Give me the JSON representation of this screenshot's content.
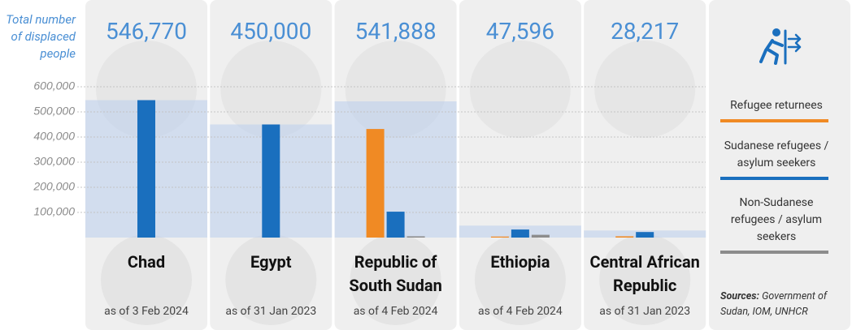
{
  "chart_data": {
    "type": "bar",
    "title": "Total number of displaced people",
    "categories": [
      "Chad",
      "Egypt",
      "Republic of South Sudan",
      "Ethiopia",
      "Central African Republic"
    ],
    "dates": [
      "as of 3 Feb 2024",
      "as of 31 Jan 2023",
      "as of 4 Feb 2024",
      "as of 4 Feb 2024",
      "as of 31 Jan 2023"
    ],
    "totals": {
      "values": [
        546770,
        450000,
        541888,
        47596,
        28217
      ],
      "value_labels": [
        "546,770",
        "450,000",
        "541,888",
        "47,596",
        "28,217"
      ],
      "color": "#b9cdec"
    },
    "series": [
      {
        "name": "Refugee returnees",
        "color": "#f08a24",
        "values": [
          null,
          null,
          432000,
          4000,
          5000
        ]
      },
      {
        "name": "Sudanese refugees / asylum seekers",
        "color": "#1a6fbe",
        "values": [
          546770,
          450000,
          103000,
          32000,
          22000
        ]
      },
      {
        "name": "Non-Sudanese refugees / asylum seekers",
        "color": "#8c8c8c",
        "values": [
          null,
          null,
          5000,
          11000,
          null
        ]
      }
    ],
    "ylim": [
      0,
      600000
    ],
    "yticks": [
      {
        "value": 100000,
        "label": "100,000"
      },
      {
        "value": 200000,
        "label": "200,000"
      },
      {
        "value": 300000,
        "label": "300,000"
      },
      {
        "value": 400000,
        "label": "400,000"
      },
      {
        "value": 500000,
        "label": "500,000"
      },
      {
        "value": 600000,
        "label": "600,000"
      }
    ],
    "grid": true,
    "sources_label": "Sources:",
    "sources_text": "Government of Sudan, IOM, UNHCR"
  }
}
